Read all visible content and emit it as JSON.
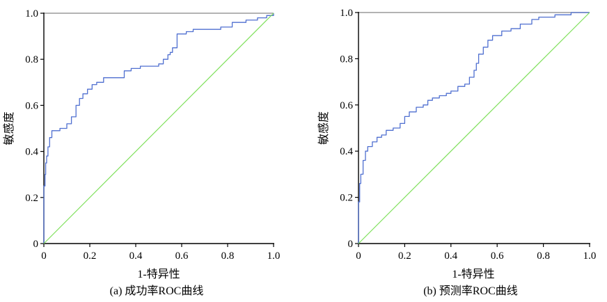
{
  "chart_data": [
    {
      "type": "line",
      "caption": "(a) 成功率ROC曲线",
      "xlabel": "1-特异性",
      "ylabel": "敏感度",
      "xlim": [
        0,
        1
      ],
      "ylim": [
        0,
        1
      ],
      "x_ticks": [
        "0",
        "0.2",
        "0.4",
        "0.6",
        "0.8",
        "1.0"
      ],
      "y_ticks": [
        "0",
        "0.2",
        "0.4",
        "0.6",
        "0.8",
        "1.0"
      ],
      "grid": false,
      "colors": {
        "roc": "#4f6fd0",
        "reference": "#7ee05a",
        "topline": "#9a9a9a"
      },
      "series": [
        {
          "role": "roc",
          "x": [
            0,
            0,
            0.005,
            0.008,
            0.012,
            0.018,
            0.025,
            0.035,
            0.05,
            0.07,
            0.09,
            0.1,
            0.12,
            0.14,
            0.155,
            0.17,
            0.19,
            0.21,
            0.23,
            0.26,
            0.3,
            0.35,
            0.38,
            0.42,
            0.46,
            0.5,
            0.52,
            0.54,
            0.55,
            0.56,
            0.58,
            0.62,
            0.65,
            0.7,
            0.77,
            0.82,
            0.88,
            0.93,
            0.97,
            1.0
          ],
          "y": [
            0,
            0.25,
            0.3,
            0.35,
            0.38,
            0.42,
            0.46,
            0.49,
            0.49,
            0.5,
            0.5,
            0.52,
            0.55,
            0.6,
            0.63,
            0.65,
            0.67,
            0.69,
            0.7,
            0.72,
            0.72,
            0.75,
            0.76,
            0.77,
            0.77,
            0.78,
            0.8,
            0.82,
            0.83,
            0.85,
            0.91,
            0.92,
            0.93,
            0.93,
            0.94,
            0.96,
            0.97,
            0.98,
            0.99,
            1.0
          ]
        },
        {
          "role": "reference",
          "x": [
            0,
            1
          ],
          "y": [
            0,
            1
          ]
        }
      ]
    },
    {
      "type": "line",
      "caption": "(b) 预测率ROC曲线",
      "xlabel": "1-特异性",
      "ylabel": "敏感度",
      "xlim": [
        0,
        1
      ],
      "ylim": [
        0,
        1
      ],
      "x_ticks": [
        "0",
        "0.2",
        "0.4",
        "0.6",
        "0.8",
        "1.0"
      ],
      "y_ticks": [
        "0",
        "0.2",
        "0.4",
        "0.6",
        "0.8",
        "1.0"
      ],
      "grid": false,
      "colors": {
        "roc": "#4f6fd0",
        "reference": "#7ee05a",
        "topline": "#9a9a9a"
      },
      "series": [
        {
          "role": "roc",
          "x": [
            0,
            0,
            0.005,
            0.01,
            0.02,
            0.03,
            0.04,
            0.06,
            0.08,
            0.1,
            0.12,
            0.15,
            0.18,
            0.2,
            0.22,
            0.25,
            0.28,
            0.3,
            0.32,
            0.35,
            0.38,
            0.4,
            0.43,
            0.46,
            0.48,
            0.5,
            0.51,
            0.52,
            0.54,
            0.56,
            0.58,
            0.62,
            0.66,
            0.7,
            0.75,
            0.78,
            0.85,
            0.92,
            1.0
          ],
          "y": [
            0,
            0.18,
            0.26,
            0.3,
            0.36,
            0.4,
            0.42,
            0.44,
            0.46,
            0.47,
            0.49,
            0.5,
            0.52,
            0.55,
            0.57,
            0.59,
            0.6,
            0.62,
            0.63,
            0.64,
            0.65,
            0.66,
            0.68,
            0.69,
            0.72,
            0.75,
            0.78,
            0.82,
            0.85,
            0.88,
            0.9,
            0.92,
            0.93,
            0.95,
            0.97,
            0.98,
            0.99,
            1.0,
            1.0
          ]
        },
        {
          "role": "reference",
          "x": [
            0,
            1
          ],
          "y": [
            0,
            1
          ]
        }
      ]
    }
  ]
}
